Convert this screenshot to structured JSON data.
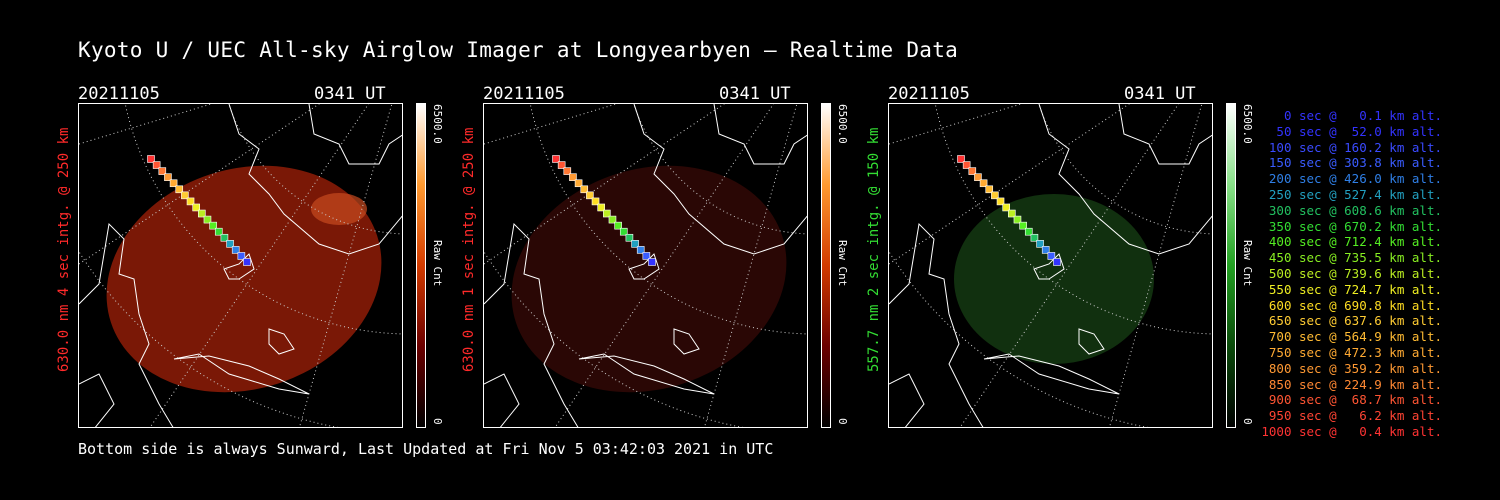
{
  "title": "Kyoto U / UEC All-sky Airglow Imager at Longyearbyen — Realtime Data",
  "footer": "Bottom side is always Sunward, Last Updated at Fri Nov  5 03:42:03 2021 in UTC",
  "panels": [
    {
      "date": "20211105",
      "time": "0341 UT",
      "label": "630.0 nm 4 sec intg. @ 250 km",
      "label_color": "#ff2a2a",
      "cbar_max": "6500.0",
      "cbar_unit": "Raw Cnt",
      "cbar_min": "0",
      "cbar_color": "red",
      "glow": "#8a1a08"
    },
    {
      "date": "20211105",
      "time": "0341 UT",
      "label": "630.0 nm 1 sec intg. @ 250 km",
      "label_color": "#ff2a2a",
      "cbar_max": "6500.0",
      "cbar_unit": "Raw Cnt",
      "cbar_min": "0",
      "cbar_color": "red",
      "glow": "#2e0905"
    },
    {
      "date": "20211105",
      "time": "0341 UT",
      "label": "557.7 nm 2 sec intg. @ 150 km",
      "label_color": "#33dd33",
      "cbar_max": "6500.0",
      "cbar_unit": "Raw Cnt",
      "cbar_min": "0",
      "cbar_color": "green",
      "glow": "#143a12"
    }
  ],
  "legend": [
    {
      "text": "   0 sec @   0.1 km alt.",
      "color": "#3333ff"
    },
    {
      "text": "  50 sec @  52.0 km alt.",
      "color": "#3333ff"
    },
    {
      "text": " 100 sec @ 160.2 km alt.",
      "color": "#3a4aff"
    },
    {
      "text": " 150 sec @ 303.8 km alt.",
      "color": "#3a5cff"
    },
    {
      "text": " 200 sec @ 426.0 km alt.",
      "color": "#2f7fe6"
    },
    {
      "text": " 250 sec @ 527.4 km alt.",
      "color": "#22a0c0"
    },
    {
      "text": " 300 sec @ 608.6 km alt.",
      "color": "#22c060"
    },
    {
      "text": " 350 sec @ 670.2 km alt.",
      "color": "#33dd33"
    },
    {
      "text": " 400 sec @ 712.4 km alt.",
      "color": "#55ee22"
    },
    {
      "text": " 450 sec @ 735.5 km alt.",
      "color": "#88ee22"
    },
    {
      "text": " 500 sec @ 739.6 km alt.",
      "color": "#bbee22"
    },
    {
      "text": " 550 sec @ 724.7 km alt.",
      "color": "#eeee22"
    },
    {
      "text": " 600 sec @ 690.8 km alt.",
      "color": "#ffdd22"
    },
    {
      "text": " 650 sec @ 637.6 km alt.",
      "color": "#ffcc33"
    },
    {
      "text": " 700 sec @ 564.9 km alt.",
      "color": "#ffbb33"
    },
    {
      "text": " 750 sec @ 472.3 km alt.",
      "color": "#ffaa33"
    },
    {
      "text": " 800 sec @ 359.2 km alt.",
      "color": "#ff9933"
    },
    {
      "text": " 850 sec @ 224.9 km alt.",
      "color": "#ff8833"
    },
    {
      "text": " 900 sec @  68.7 km alt.",
      "color": "#ff5533"
    },
    {
      "text": " 950 sec @   6.2 km alt.",
      "color": "#ff4433"
    },
    {
      "text": "1000 sec @   0.4 km alt.",
      "color": "#ff3333"
    }
  ]
}
